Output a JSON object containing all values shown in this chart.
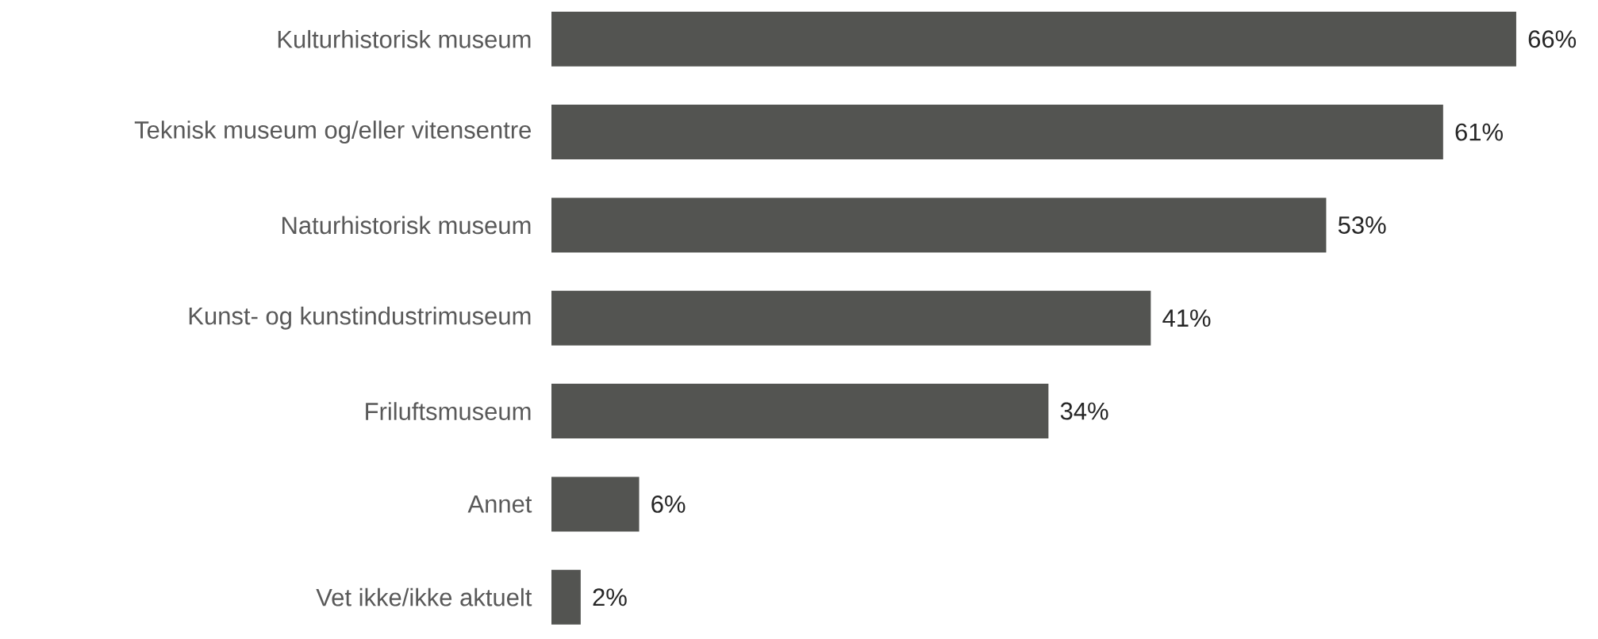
{
  "chart_data": {
    "type": "bar",
    "orientation": "horizontal",
    "categories": [
      "Kulturhistorisk museum",
      "Teknisk museum og/eller vitensentre",
      "Naturhistorisk museum",
      "Kunst- og kunstindustrimuseum",
      "Friluftsmuseum",
      "Annet",
      "Vet ikke/ikke aktuelt"
    ],
    "values": [
      66,
      61,
      53,
      41,
      34,
      6,
      2
    ],
    "value_labels": [
      "66%",
      "61%",
      "53%",
      "41%",
      "34%",
      "6%",
      "2%"
    ],
    "color": "#535451"
  }
}
